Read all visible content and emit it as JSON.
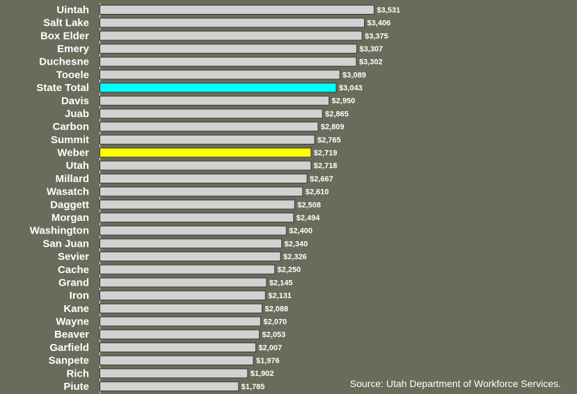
{
  "chart_data": {
    "type": "bar",
    "orientation": "horizontal",
    "source": "Source: Utah Department of Workforce Services.",
    "categories": [
      "Uintah",
      "Salt Lake",
      "Box Elder",
      "Emery",
      "Duchesne",
      "Tooele",
      "State Total",
      "Davis",
      "Juab",
      "Carbon",
      "Summit",
      "Weber",
      "Utah",
      "Millard",
      "Wasatch",
      "Daggett",
      "Morgan",
      "Washington",
      "San Juan",
      "Sevier",
      "Cache",
      "Grand",
      "Iron",
      "Kane",
      "Wayne",
      "Beaver",
      "Garfield",
      "Sanpete",
      "Rich",
      "Piute"
    ],
    "values": [
      3531,
      3406,
      3375,
      3307,
      3302,
      3089,
      3043,
      2950,
      2865,
      2809,
      2765,
      2719,
      2718,
      2667,
      2610,
      2508,
      2494,
      2400,
      2340,
      2326,
      2250,
      2145,
      2131,
      2088,
      2070,
      2053,
      2007,
      1976,
      1902,
      1785
    ],
    "value_labels": [
      "$3,531",
      "$3,406",
      "$3,375",
      "$3,307",
      "$3,302",
      "$3,089",
      "$3,043",
      "$2,950",
      "$2,865",
      "$2,809",
      "$2,765",
      "$2,719",
      "$2,718",
      "$2,667",
      "$2,610",
      "$2,508",
      "$2,494",
      "$2,400",
      "$2,340",
      "$2,326",
      "$2,250",
      "$2,145",
      "$2,131",
      "$2,088",
      "$2,070",
      "$2,053",
      "$2,007",
      "$1,976",
      "$1,902",
      "$1,785"
    ],
    "colors": [
      "#d2d2d2",
      "#d2d2d2",
      "#d2d2d2",
      "#d2d2d2",
      "#d2d2d2",
      "#d2d2d2",
      "#00ffff",
      "#d2d2d2",
      "#d2d2d2",
      "#d2d2d2",
      "#d2d2d2",
      "#ffff00",
      "#d2d2d2",
      "#d2d2d2",
      "#d2d2d2",
      "#d2d2d2",
      "#d2d2d2",
      "#d2d2d2",
      "#d2d2d2",
      "#d2d2d2",
      "#d2d2d2",
      "#d2d2d2",
      "#d2d2d2",
      "#d2d2d2",
      "#d2d2d2",
      "#d2d2d2",
      "#d2d2d2",
      "#d2d2d2",
      "#d2d2d2",
      "#d2d2d2"
    ]
  }
}
